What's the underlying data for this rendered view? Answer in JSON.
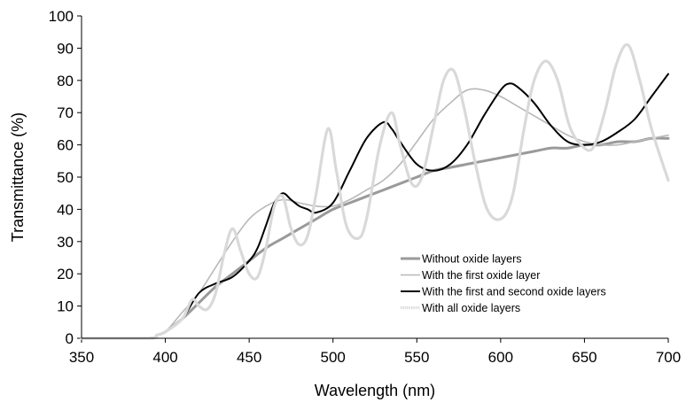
{
  "chart_data": {
    "type": "line",
    "title": "",
    "xlabel": "Wavelength (nm)",
    "ylabel": "Transmittance (%)",
    "xlim": [
      350,
      700
    ],
    "ylim": [
      0,
      100
    ],
    "xticks": [
      350,
      400,
      450,
      500,
      550,
      600,
      650,
      700
    ],
    "yticks": [
      0,
      10,
      20,
      30,
      40,
      50,
      60,
      70,
      80,
      90,
      100
    ],
    "grid": false,
    "legend_position": "bottom-right",
    "series": [
      {
        "name": "Without oxide layers",
        "color": "#9a9a9a",
        "x": [
          350,
          390,
          395,
          400,
          410,
          420,
          430,
          440,
          450,
          460,
          470,
          480,
          490,
          500,
          510,
          520,
          530,
          540,
          550,
          560,
          570,
          580,
          590,
          600,
          610,
          620,
          630,
          640,
          650,
          660,
          670,
          680,
          690,
          700
        ],
        "y": [
          0,
          0,
          1,
          2,
          6,
          11,
          16,
          20,
          24,
          28,
          31,
          34,
          37,
          40,
          42,
          44,
          46,
          48,
          50,
          52,
          53,
          54,
          55,
          56,
          57,
          58,
          59,
          59,
          60,
          60,
          61,
          61,
          62,
          62
        ]
      },
      {
        "name": "With the first oxide layer",
        "color": "#b8b8b8",
        "x": [
          350,
          390,
          395,
          400,
          410,
          420,
          430,
          440,
          450,
          460,
          470,
          480,
          490,
          500,
          510,
          520,
          530,
          540,
          550,
          560,
          570,
          580,
          590,
          600,
          610,
          620,
          630,
          640,
          650,
          660,
          670,
          680,
          690,
          700
        ],
        "y": [
          0,
          0,
          1,
          2,
          8,
          14,
          22,
          30,
          37,
          41,
          43,
          42,
          41,
          41,
          43,
          46,
          49,
          54,
          61,
          68,
          73,
          77,
          77,
          75,
          72,
          69,
          66,
          63,
          61,
          60,
          60,
          61,
          62,
          63
        ]
      },
      {
        "name": "With the first and second oxide layers",
        "color": "#000000",
        "x": [
          350,
          390,
          395,
          400,
          410,
          420,
          430,
          440,
          450,
          455,
          460,
          465,
          470,
          475,
          480,
          485,
          490,
          500,
          510,
          520,
          530,
          535,
          540,
          550,
          560,
          570,
          580,
          590,
          600,
          605,
          610,
          620,
          630,
          640,
          650,
          660,
          670,
          680,
          690,
          700
        ],
        "y": [
          0,
          0,
          1,
          2,
          6,
          14,
          17,
          19,
          24,
          28,
          35,
          42,
          45,
          43,
          41,
          40,
          39,
          42,
          52,
          62,
          67,
          65,
          61,
          54,
          52,
          54,
          60,
          69,
          77,
          79,
          78,
          73,
          66,
          61,
          60,
          61,
          64,
          68,
          75,
          82
        ]
      },
      {
        "name": "With all oxide layers",
        "color": "#d9d9d9",
        "x": [
          350,
          390,
          395,
          400,
          410,
          416,
          420,
          425,
          430,
          435,
          440,
          445,
          450,
          455,
          460,
          465,
          470,
          475,
          480,
          485,
          490,
          497,
          502,
          508,
          515,
          520,
          528,
          535,
          540,
          547,
          553,
          560,
          566,
          572,
          578,
          585,
          592,
          600,
          607,
          614,
          620,
          627,
          634,
          641,
          648,
          655,
          662,
          669,
          676,
          683,
          690,
          700
        ],
        "y": [
          0,
          0,
          1,
          2,
          6,
          12,
          10,
          9,
          14,
          26,
          34,
          27,
          20,
          19,
          28,
          41,
          44,
          34,
          29,
          32,
          45,
          65,
          52,
          35,
          31,
          37,
          60,
          70,
          60,
          48,
          50,
          66,
          80,
          83,
          72,
          54,
          40,
          37,
          44,
          65,
          80,
          86,
          80,
          66,
          60,
          59,
          70,
          85,
          91,
          80,
          65,
          49
        ]
      }
    ]
  }
}
